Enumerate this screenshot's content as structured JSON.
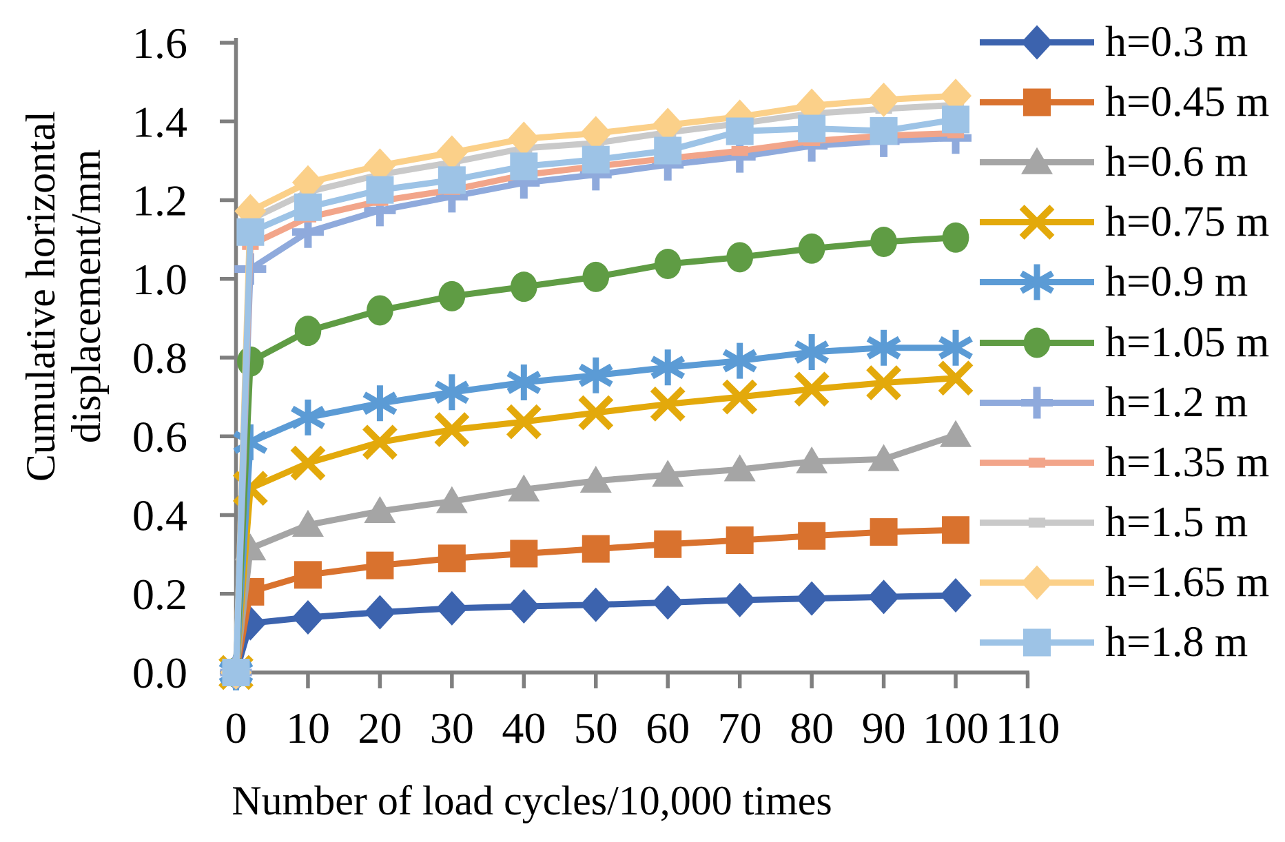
{
  "colors": {
    "axis": "#7F7F7F",
    "text": "#000000",
    "background": "#FFFFFF"
  },
  "chart_data": {
    "type": "line",
    "title": "",
    "xlabel": "Number of load cycles/10,000 times",
    "ylabel": "Cumulative horizontal displacement/mm",
    "ylabel_lines": [
      "Cumulative horizontal",
      "displacement/mm"
    ],
    "xlim": [
      0,
      110
    ],
    "ylim": [
      0,
      1.6
    ],
    "x_ticks": [
      0,
      10,
      20,
      30,
      40,
      50,
      60,
      70,
      80,
      90,
      100,
      110
    ],
    "y_tick_labels": [
      "0.0",
      "0.2",
      "0.4",
      "0.6",
      "0.8",
      "1.0",
      "1.2",
      "1.4",
      "1.6"
    ],
    "grid": false,
    "legend_position": "right",
    "x": [
      0,
      2,
      10,
      20,
      30,
      40,
      50,
      60,
      70,
      80,
      90,
      100
    ],
    "series": [
      {
        "name": "h=0.3 m",
        "color": "#3C63AE",
        "marker": "diamond",
        "values": [
          0,
          0.125,
          0.14,
          0.153,
          0.163,
          0.168,
          0.172,
          0.178,
          0.184,
          0.188,
          0.192,
          0.196
        ]
      },
      {
        "name": "h=0.45 m",
        "color": "#D9722E",
        "marker": "square",
        "values": [
          0,
          0.205,
          0.248,
          0.272,
          0.29,
          0.302,
          0.314,
          0.326,
          0.336,
          0.347,
          0.357,
          0.362
        ]
      },
      {
        "name": "h=0.6 m",
        "color": "#A5A5A5",
        "marker": "triangle",
        "values": [
          0,
          0.315,
          0.375,
          0.41,
          0.435,
          0.465,
          0.487,
          0.502,
          0.516,
          0.536,
          0.542,
          0.603
        ]
      },
      {
        "name": "h=0.75 m",
        "color": "#E3A90B",
        "marker": "x",
        "values": [
          0,
          0.468,
          0.532,
          0.585,
          0.617,
          0.637,
          0.66,
          0.682,
          0.7,
          0.72,
          0.736,
          0.748
        ]
      },
      {
        "name": "h=0.9 m",
        "color": "#5B9BD5",
        "marker": "asterisk",
        "values": [
          0,
          0.585,
          0.648,
          0.684,
          0.712,
          0.737,
          0.755,
          0.775,
          0.792,
          0.814,
          0.825,
          0.825
        ]
      },
      {
        "name": "h=1.05 m",
        "color": "#5F9C44",
        "marker": "circle",
        "values": [
          0,
          0.79,
          0.868,
          0.92,
          0.956,
          0.98,
          1.005,
          1.038,
          1.055,
          1.077,
          1.094,
          1.105
        ]
      },
      {
        "name": "h=1.2 m",
        "color": "#8FAADC",
        "marker": "plus",
        "values": [
          0,
          1.025,
          1.119,
          1.174,
          1.209,
          1.244,
          1.265,
          1.29,
          1.31,
          1.338,
          1.35,
          1.358
        ]
      },
      {
        "name": "h=1.35 m",
        "color": "#F2A58A",
        "marker": "dash",
        "values": [
          0,
          1.086,
          1.156,
          1.198,
          1.226,
          1.264,
          1.286,
          1.306,
          1.325,
          1.35,
          1.364,
          1.37
        ]
      },
      {
        "name": "h=1.5 m",
        "color": "#C9C9C9",
        "marker": "dash",
        "values": [
          0,
          1.151,
          1.221,
          1.265,
          1.296,
          1.332,
          1.345,
          1.372,
          1.395,
          1.42,
          1.432,
          1.442
        ]
      },
      {
        "name": "h=1.65 m",
        "color": "#FBD089",
        "marker": "diamond",
        "values": [
          0,
          1.172,
          1.245,
          1.288,
          1.321,
          1.356,
          1.37,
          1.391,
          1.412,
          1.44,
          1.455,
          1.465
        ]
      },
      {
        "name": "h=1.8 m",
        "color": "#9DC3E6",
        "marker": "square",
        "values": [
          0,
          1.119,
          1.182,
          1.226,
          1.251,
          1.286,
          1.303,
          1.326,
          1.375,
          1.382,
          1.376,
          1.405
        ]
      }
    ]
  }
}
